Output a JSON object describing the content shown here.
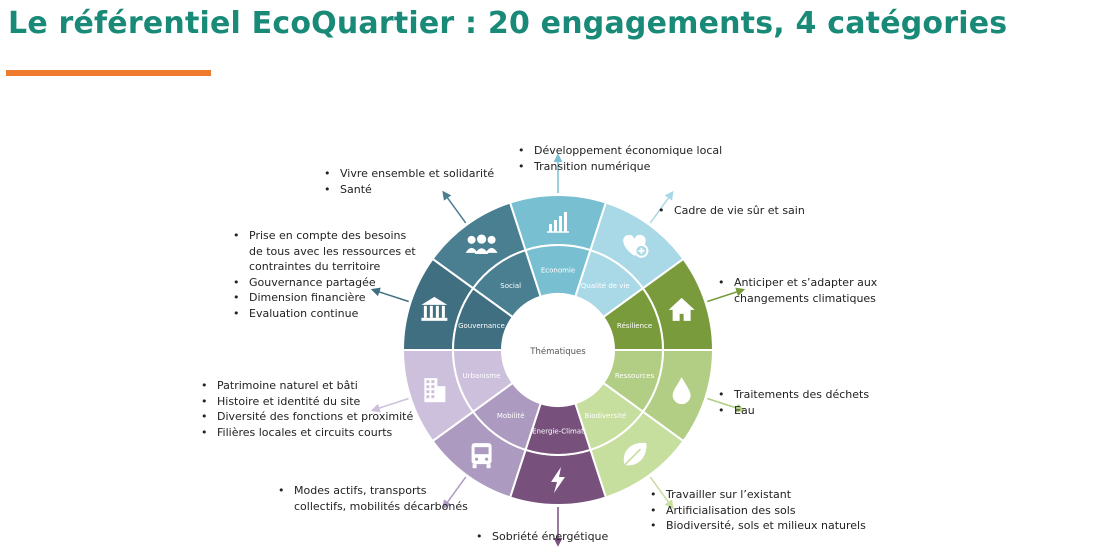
{
  "page": {
    "title": "Le référentiel EcoQuartier : 20 engagements, 4 catégories"
  },
  "diagram": {
    "center_label": "Thématiques",
    "segments": [
      {
        "key": "social",
        "label": "Social",
        "color": "#4a7f91",
        "icon": "people-icon"
      },
      {
        "key": "economie",
        "label": "Economie",
        "color": "#79bfd2",
        "icon": "chart-icon"
      },
      {
        "key": "qualite",
        "label": "Qualité de vie",
        "color": "#a9d9e6",
        "icon": "heart-plus-icon"
      },
      {
        "key": "resilience",
        "label": "Résilience",
        "color": "#799b3c",
        "icon": "house-icon"
      },
      {
        "key": "ressources",
        "label": "Ressources",
        "color": "#b2ce84",
        "icon": "drop-icon"
      },
      {
        "key": "biodiversite",
        "label": "Biodiversité",
        "color": "#c6de9e",
        "icon": "leaf-icon"
      },
      {
        "key": "energie",
        "label": "Energie-Climat",
        "color": "#77507c",
        "icon": "lightning-icon"
      },
      {
        "key": "mobilite",
        "label": "Mobilité",
        "color": "#ad9ac0",
        "icon": "bus-icon"
      },
      {
        "key": "urbanisme",
        "label": "Urbanisme",
        "color": "#cdc0dc",
        "icon": "building-icon"
      },
      {
        "key": "gouvernance",
        "label": "Gouvernance",
        "color": "#3f6f80",
        "icon": "institution-icon"
      }
    ],
    "lists": {
      "social": [
        "Vivre ensemble et solidarité",
        "Santé"
      ],
      "economie": [
        "Développement économique local",
        "Transition numérique"
      ],
      "qualite": [
        "Cadre de vie sûr et sain"
      ],
      "resilience": [
        "Anticiper et s’adapter aux changements climatiques"
      ],
      "ressources": [
        "Traitements des déchets",
        "Eau"
      ],
      "biodiversite": [
        "Travailler sur l’existant",
        "Artificialisation des sols",
        "Biodiversité, sols et milieux naturels"
      ],
      "energie": [
        "Sobriété énergétique"
      ],
      "mobilite": [
        "Modes actifs, transports collectifs, mobilités décarbonés"
      ],
      "urbanisme": [
        "Patrimoine naturel et bâti",
        "Histoire et identité du site",
        "Diversité des fonctions et proximité",
        "Filières locales et circuits courts"
      ],
      "gouvernance": [
        "Prise en compte des besoins de tous avec les ressources et contraintes du territoire",
        "Gouvernance partagée",
        "Dimension financière",
        "Evaluation continue"
      ]
    }
  }
}
